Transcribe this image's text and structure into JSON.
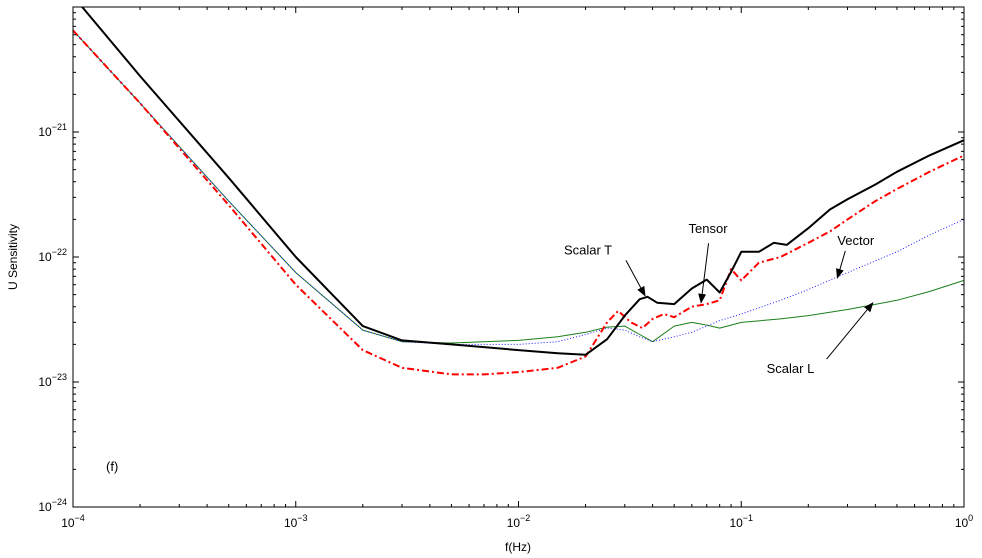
{
  "chart_data": {
    "type": "line",
    "xlabel": "f(Hz)",
    "ylabel": "U Sensitivity",
    "xscale": "log",
    "yscale": "log",
    "xlim": [
      0.0001,
      1
    ],
    "ylim": [
      1e-24,
      1e-20
    ],
    "grid": false,
    "panel_label": "(f)",
    "x_ticks": [
      {
        "value": 0.0001,
        "base": "10",
        "exp": "−4"
      },
      {
        "value": 0.001,
        "base": "10",
        "exp": "−3"
      },
      {
        "value": 0.01,
        "base": "10",
        "exp": "−2"
      },
      {
        "value": 0.1,
        "base": "10",
        "exp": "−1"
      },
      {
        "value": 1,
        "base": "10",
        "exp": "0"
      }
    ],
    "y_ticks": [
      {
        "value": 1e-24,
        "base": "10",
        "exp": "−24"
      },
      {
        "value": 1e-23,
        "base": "10",
        "exp": "−23"
      },
      {
        "value": 1e-22,
        "base": "10",
        "exp": "−22"
      },
      {
        "value": 1e-21,
        "base": "10",
        "exp": "−21"
      }
    ],
    "series": [
      {
        "name": "Scalar L",
        "color": "#1a7f1a",
        "style": "solid",
        "x": [
          0.0001,
          0.0002,
          0.0005,
          0.001,
          0.002,
          0.003,
          0.005,
          0.01,
          0.015,
          0.02,
          0.025,
          0.03,
          0.035,
          0.04,
          0.05,
          0.06,
          0.07,
          0.08,
          0.1,
          0.15,
          0.2,
          0.3,
          0.5,
          0.7,
          1
        ],
        "y": [
          6.5e-21,
          1.7e-21,
          2.8e-22,
          7.5e-23,
          2.6e-23,
          2.1e-23,
          2.05e-23,
          2.15e-23,
          2.3e-23,
          2.5e-23,
          2.75e-23,
          2.8e-23,
          2.4e-23,
          2.1e-23,
          2.8e-23,
          3e-23,
          2.85e-23,
          2.7e-23,
          3e-23,
          3.2e-23,
          3.4e-23,
          3.8e-23,
          4.5e-23,
          5.3e-23,
          6.5e-23
        ]
      },
      {
        "name": "Vector",
        "color": "#1a1aff",
        "style": "dotted",
        "x": [
          0.0001,
          0.0002,
          0.0005,
          0.001,
          0.002,
          0.003,
          0.005,
          0.01,
          0.015,
          0.02,
          0.025,
          0.03,
          0.035,
          0.04,
          0.05,
          0.06,
          0.07,
          0.08,
          0.1,
          0.15,
          0.2,
          0.3,
          0.5,
          0.7,
          1
        ],
        "y": [
          6.5e-21,
          1.7e-21,
          2.8e-22,
          7.5e-23,
          2.6e-23,
          2.1e-23,
          2e-23,
          2e-23,
          2.1e-23,
          2.4e-23,
          2.7e-23,
          2.6e-23,
          2.3e-23,
          2.1e-23,
          2.3e-23,
          2.5e-23,
          2.8e-23,
          3.1e-23,
          3.5e-23,
          4.5e-23,
          5.5e-23,
          7.5e-23,
          1.1e-22,
          1.5e-22,
          2e-22
        ]
      },
      {
        "name": "Tensor",
        "color": "#ff0000",
        "style": "dashdot",
        "x": [
          0.0001,
          0.0002,
          0.0005,
          0.001,
          0.002,
          0.003,
          0.005,
          0.007,
          0.01,
          0.015,
          0.02,
          0.025,
          0.028,
          0.032,
          0.036,
          0.04,
          0.045,
          0.05,
          0.06,
          0.07,
          0.08,
          0.09,
          0.1,
          0.12,
          0.15,
          0.2,
          0.25,
          0.3,
          0.4,
          0.5,
          0.7,
          1
        ],
        "y": [
          6.5e-21,
          1.7e-21,
          2.6e-22,
          6e-23,
          1.8e-23,
          1.3e-23,
          1.15e-23,
          1.15e-23,
          1.2e-23,
          1.3e-23,
          1.6e-23,
          3e-23,
          3.7e-23,
          3e-23,
          2.7e-23,
          3.2e-23,
          3.5e-23,
          3.3e-23,
          4e-23,
          4.2e-23,
          4.5e-23,
          8e-23,
          6.5e-23,
          9e-23,
          1e-22,
          1.3e-22,
          1.6e-22,
          2e-22,
          2.8e-22,
          3.5e-22,
          4.8e-22,
          6.5e-22
        ]
      },
      {
        "name": "Scalar T",
        "color": "#000000",
        "style": "solid",
        "x": [
          0.00011,
          0.0002,
          0.0005,
          0.001,
          0.002,
          0.003,
          0.005,
          0.01,
          0.015,
          0.02,
          0.025,
          0.03,
          0.035,
          0.038,
          0.042,
          0.05,
          0.06,
          0.07,
          0.08,
          0.09,
          0.1,
          0.12,
          0.14,
          0.16,
          0.2,
          0.25,
          0.3,
          0.4,
          0.5,
          0.7,
          1
        ],
        "y": [
          1e-20,
          2.8e-21,
          4.3e-22,
          1e-22,
          2.8e-23,
          2.15e-23,
          2e-23,
          1.8e-23,
          1.7e-23,
          1.65e-23,
          2.2e-23,
          3.4e-23,
          4.6e-23,
          4.8e-23,
          4.3e-23,
          4.2e-23,
          5.6e-23,
          6.6e-23,
          5.2e-23,
          7.6e-23,
          1.1e-22,
          1.1e-22,
          1.3e-22,
          1.25e-22,
          1.7e-22,
          2.4e-22,
          2.9e-22,
          3.8e-22,
          4.8e-22,
          6.5e-22,
          8.6e-22
        ]
      }
    ],
    "annotations": [
      {
        "text": "Scalar T",
        "x": 0.016,
        "y": 1.05e-22,
        "tx": 0.037,
        "ty": 4.9e-23
      },
      {
        "text": "Tensor",
        "x": 0.058,
        "y": 1.55e-22,
        "tx": 0.066,
        "ty": 4.3e-23
      },
      {
        "text": "Vector",
        "x": 0.27,
        "y": 1.25e-22,
        "tx": 0.27,
        "ty": 6.8e-23
      },
      {
        "text": "Scalar L",
        "x": 0.13,
        "y": 1.18e-23,
        "tx": 0.39,
        "ty": 4.3e-23
      }
    ]
  }
}
